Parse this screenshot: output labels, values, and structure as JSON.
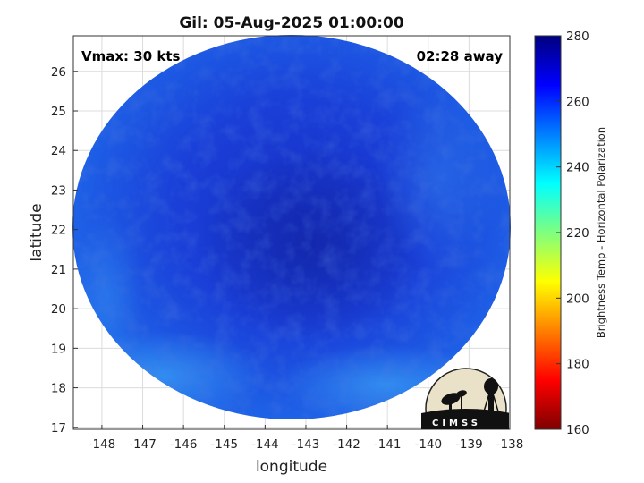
{
  "title": "Gil: 05-Aug-2025 01:00:00",
  "vmax_label": "Vmax: 30 kts",
  "time_away_label": "02:28 away",
  "xlabel": "longitude",
  "ylabel": "latitude",
  "x_ticks": [
    "-148",
    "-147",
    "-146",
    "-145",
    "-144",
    "-143",
    "-142",
    "-141",
    "-140",
    "-139",
    "-138"
  ],
  "y_ticks": [
    "26",
    "25",
    "24",
    "23",
    "22",
    "21",
    "20",
    "19",
    "18",
    "17"
  ],
  "colorbar": {
    "label": "Brightness Temp - Horizontal Polarization",
    "ticks": [
      "280",
      "260",
      "240",
      "220",
      "200",
      "180",
      "160"
    ],
    "range": [
      160,
      280
    ],
    "colors": [
      "#7f0000",
      "#ff0000",
      "#ff7f00",
      "#ffff00",
      "#7fff7f",
      "#00ffff",
      "#007fff",
      "#0000ff",
      "#00007f"
    ]
  },
  "logo_text": "CIMSS",
  "chart_data": {
    "type": "heatmap",
    "title": "Gil: 05-Aug-2025 01:00:00",
    "xlabel": "longitude",
    "ylabel": "latitude",
    "xlim": [
      -148.7,
      -138
    ],
    "ylim": [
      16.95,
      26.9
    ],
    "grid": true,
    "colorbar_label": "Brightness Temp - Horizontal Polarization",
    "colorbar_range": [
      160,
      280
    ],
    "storm": "Gil",
    "vmax_kts": 30
  }
}
